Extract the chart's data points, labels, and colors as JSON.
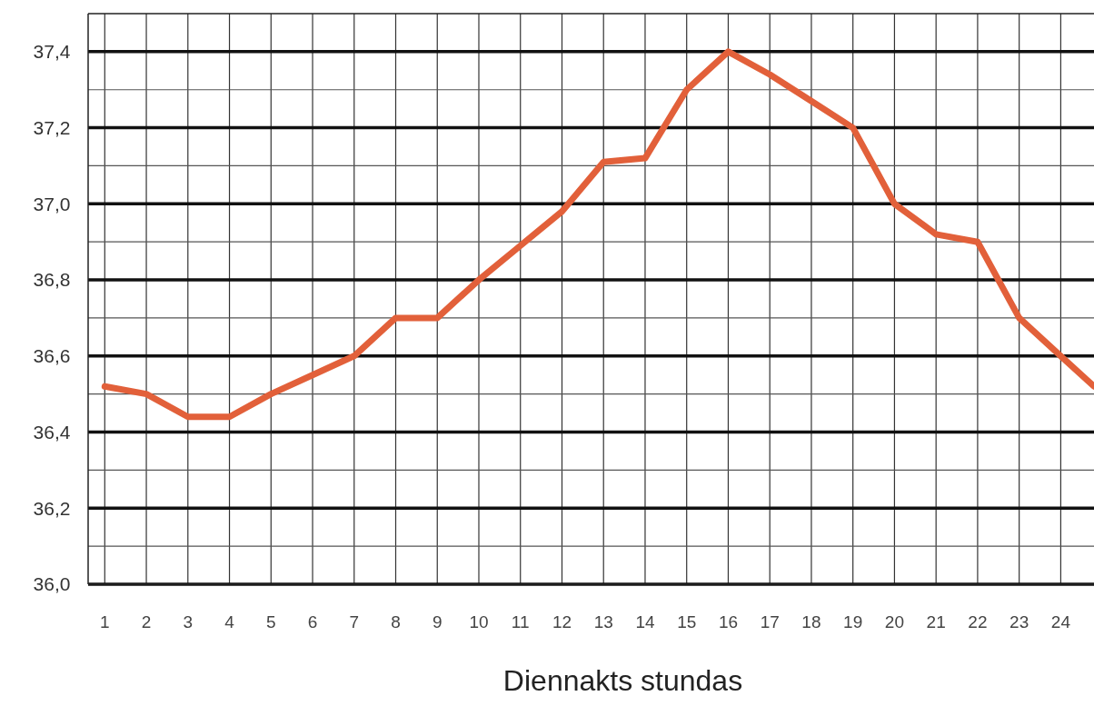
{
  "chart_data": {
    "type": "line",
    "xlabel": "Diennakts stundas",
    "x": [
      1,
      2,
      3,
      4,
      5,
      6,
      7,
      8,
      9,
      10,
      11,
      12,
      13,
      14,
      15,
      16,
      17,
      18,
      19,
      20,
      21,
      22,
      23,
      24,
      24.8
    ],
    "series": [
      {
        "color": "#e2603a",
        "values": [
          36.52,
          36.5,
          36.44,
          36.44,
          36.5,
          36.55,
          36.6,
          36.7,
          36.7,
          36.8,
          36.89,
          36.98,
          37.11,
          37.12,
          37.3,
          37.4,
          37.34,
          37.27,
          37.2,
          37.0,
          36.92,
          36.9,
          36.7,
          36.6,
          36.52
        ]
      }
    ],
    "xlim": [
      0.6,
      24.8
    ],
    "xticks": [
      1,
      2,
      3,
      4,
      5,
      6,
      7,
      8,
      9,
      10,
      11,
      12,
      13,
      14,
      15,
      16,
      17,
      18,
      19,
      20,
      21,
      22,
      23,
      24
    ],
    "ylim": [
      36.0,
      37.5
    ],
    "yticks": [
      {
        "value": 36.0,
        "label": "36,0"
      },
      {
        "value": 36.1,
        "label": null
      },
      {
        "value": 36.2,
        "label": "36,2"
      },
      {
        "value": 36.3,
        "label": null
      },
      {
        "value": 36.4,
        "label": "36,4"
      },
      {
        "value": 36.5,
        "label": null
      },
      {
        "value": 36.6,
        "label": "36,6"
      },
      {
        "value": 36.7,
        "label": null
      },
      {
        "value": 36.8,
        "label": "36,8"
      },
      {
        "value": 36.9,
        "label": null
      },
      {
        "value": 37.0,
        "label": "37,0"
      },
      {
        "value": 37.1,
        "label": null
      },
      {
        "value": 37.2,
        "label": "37,2"
      },
      {
        "value": 37.3,
        "label": null
      },
      {
        "value": 37.4,
        "label": "37,4"
      }
    ],
    "grid": true,
    "marker": "none",
    "line_style": "solid"
  }
}
